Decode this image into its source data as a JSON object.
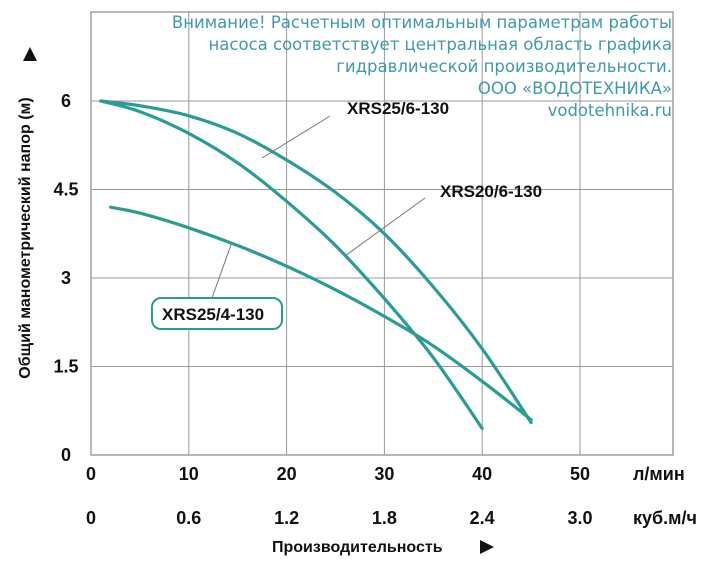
{
  "notice": {
    "lines": [
      "Внимание! Расчетным оптимальным параметрам работы",
      "насоса соответствует центральная область графика",
      "гидравлической производительности.",
      "ООО «ВОДОТЕХНИКА»",
      "vodotehnika.ru"
    ]
  },
  "chart_data": {
    "type": "line",
    "title": "",
    "xlabel": "Производительность",
    "ylabel": "Общий манометрический напор (м)",
    "xlim": [
      0,
      60
    ],
    "ylim": [
      0,
      7
    ],
    "grid": true,
    "x_ticks": [
      {
        "value": 0,
        "label": "0"
      },
      {
        "value": 10,
        "label": "10"
      },
      {
        "value": 20,
        "label": "20"
      },
      {
        "value": 30,
        "label": "30"
      },
      {
        "value": 40,
        "label": "40"
      },
      {
        "value": 50,
        "label": "50"
      }
    ],
    "x_unit": "л/мин",
    "x2_ticks": [
      {
        "value": 0,
        "label": "0"
      },
      {
        "value": 10,
        "label": "0.6"
      },
      {
        "value": 20,
        "label": "1.2"
      },
      {
        "value": 30,
        "label": "1.8"
      },
      {
        "value": 40,
        "label": "2.4"
      },
      {
        "value": 50,
        "label": "3.0"
      }
    ],
    "x2_unit": "куб.м/ч",
    "y_ticks": [
      {
        "value": 0,
        "label": "0"
      },
      {
        "value": 1.5,
        "label": "1.5"
      },
      {
        "value": 3,
        "label": "3"
      },
      {
        "value": 4.5,
        "label": "4.5"
      },
      {
        "value": 6,
        "label": "6"
      }
    ],
    "series": [
      {
        "name": "XRS25/6-130",
        "color": "#2a9d93",
        "x": [
          1,
          5,
          10,
          15,
          20,
          25,
          30,
          35,
          40,
          45
        ],
        "y": [
          6.0,
          5.92,
          5.75,
          5.45,
          5.0,
          4.45,
          3.75,
          2.85,
          1.8,
          0.55
        ]
      },
      {
        "name": "XRS20/6-130",
        "color": "#2a9d93",
        "x": [
          1,
          5,
          10,
          15,
          20,
          25,
          30,
          35,
          40
        ],
        "y": [
          6.0,
          5.82,
          5.45,
          4.95,
          4.3,
          3.55,
          2.65,
          1.65,
          0.45
        ]
      },
      {
        "name": "XRS25/4-130",
        "color": "#2a9d93",
        "x": [
          2,
          5,
          10,
          15,
          20,
          25,
          30,
          35,
          40,
          45
        ],
        "y": [
          4.2,
          4.1,
          3.85,
          3.55,
          3.2,
          2.8,
          2.35,
          1.85,
          1.25,
          0.6
        ]
      }
    ],
    "annotations": [
      {
        "series": "XRS25/6-130",
        "text": "XRS25/6-130",
        "boxed": false,
        "color": "#111111"
      },
      {
        "series": "XRS20/6-130",
        "text": "XRS20/6-130",
        "boxed": false,
        "color": "#111111"
      },
      {
        "series": "XRS25/4-130",
        "text": "XRS25/4-130",
        "boxed": true,
        "color": "#111111"
      }
    ]
  }
}
